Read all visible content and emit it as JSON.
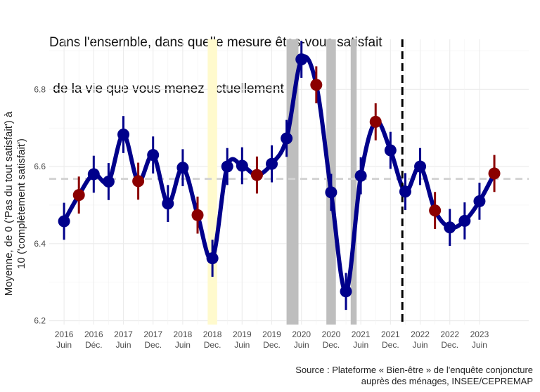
{
  "title_lines": [
    "Dans l'ensemble, dans quelle mesure êtes-vous satisfait",
    " de la vie que vous menez actuellement ?"
  ],
  "ylabel_lines": [
    "Moyenne, de 0 ('Pas du tout satisfait') à",
    "10 ('complètement satisfait')"
  ],
  "source_lines": [
    "Source : Plateforme « Bien-être » de l'enquête conjoncture",
    "auprès des ménages, INSEE/CEPREMAP"
  ],
  "colors": {
    "line": "#00008B",
    "point_main": "#00008B",
    "point_highlight": "#8B0000",
    "reference_line": "#d3d3d3",
    "grey_band": "#bebebe",
    "yellow_band": "#fffacd",
    "vline": "#000000"
  },
  "chart_data": {
    "type": "line",
    "ylim": [
      6.19,
      6.93
    ],
    "yticks": [
      6.2,
      6.4,
      6.6,
      6.8
    ],
    "ytick_labels": [
      "6.2",
      "6.4",
      "6.6",
      "6.8"
    ],
    "xlim": [
      2015.75,
      2023.83
    ],
    "xticks": [
      {
        "x": 2016.0,
        "year": "2016",
        "month": "Juin"
      },
      {
        "x": 2016.5,
        "year": "2016",
        "month": "Déc."
      },
      {
        "x": 2017.0,
        "year": "2017",
        "month": "Juin"
      },
      {
        "x": 2017.5,
        "year": "2017",
        "month": "Dec."
      },
      {
        "x": 2018.0,
        "year": "2018",
        "month": "Juin"
      },
      {
        "x": 2018.5,
        "year": "2018",
        "month": "Dec."
      },
      {
        "x": 2019.0,
        "year": "2019",
        "month": "Juin"
      },
      {
        "x": 2019.5,
        "year": "2019",
        "month": "Dec."
      },
      {
        "x": 2020.0,
        "year": "2020",
        "month": "Juin"
      },
      {
        "x": 2020.5,
        "year": "2020",
        "month": "Dec."
      },
      {
        "x": 2021.0,
        "year": "2021",
        "month": "Juin"
      },
      {
        "x": 2021.5,
        "year": "2021",
        "month": "Dec."
      },
      {
        "x": 2022.0,
        "year": "2022",
        "month": "Juin"
      },
      {
        "x": 2022.5,
        "year": "2022",
        "month": "Dec."
      },
      {
        "x": 2023.0,
        "year": "2023",
        "month": "Juin"
      }
    ],
    "reference_y": 6.568,
    "vline_x": 2021.7,
    "bands": [
      {
        "x0": 2018.42,
        "x1": 2018.58,
        "color": "yellow"
      },
      {
        "x0": 2019.75,
        "x1": 2019.95,
        "color": "grey"
      },
      {
        "x0": 2020.42,
        "x1": 2020.58,
        "color": "grey"
      },
      {
        "x0": 2020.83,
        "x1": 2020.93,
        "color": "grey"
      }
    ],
    "points": [
      {
        "x": 2016.0,
        "y": 6.458,
        "lo": 6.41,
        "hi": 6.506,
        "highlight": false
      },
      {
        "x": 2016.25,
        "y": 6.526,
        "lo": 6.478,
        "hi": 6.574,
        "highlight": true
      },
      {
        "x": 2016.5,
        "y": 6.58,
        "lo": 6.532,
        "hi": 6.628,
        "highlight": false
      },
      {
        "x": 2016.75,
        "y": 6.561,
        "lo": 6.513,
        "hi": 6.609,
        "highlight": false
      },
      {
        "x": 2017.0,
        "y": 6.683,
        "lo": 6.635,
        "hi": 6.731,
        "highlight": false
      },
      {
        "x": 2017.25,
        "y": 6.562,
        "lo": 6.514,
        "hi": 6.61,
        "highlight": true
      },
      {
        "x": 2017.5,
        "y": 6.63,
        "lo": 6.582,
        "hi": 6.678,
        "highlight": false
      },
      {
        "x": 2017.75,
        "y": 6.504,
        "lo": 6.456,
        "hi": 6.552,
        "highlight": false
      },
      {
        "x": 2018.0,
        "y": 6.597,
        "lo": 6.549,
        "hi": 6.645,
        "highlight": false
      },
      {
        "x": 2018.25,
        "y": 6.474,
        "lo": 6.426,
        "hi": 6.522,
        "highlight": true
      },
      {
        "x": 2018.5,
        "y": 6.362,
        "lo": 6.314,
        "hi": 6.41,
        "highlight": false
      },
      {
        "x": 2018.75,
        "y": 6.6,
        "lo": 6.552,
        "hi": 6.648,
        "highlight": false
      },
      {
        "x": 2019.0,
        "y": 6.602,
        "lo": 6.554,
        "hi": 6.65,
        "highlight": false
      },
      {
        "x": 2019.25,
        "y": 6.578,
        "lo": 6.53,
        "hi": 6.626,
        "highlight": true
      },
      {
        "x": 2019.5,
        "y": 6.607,
        "lo": 6.559,
        "hi": 6.655,
        "highlight": false
      },
      {
        "x": 2019.75,
        "y": 6.673,
        "lo": 6.625,
        "hi": 6.721,
        "highlight": false
      },
      {
        "x": 2020.0,
        "y": 6.878,
        "lo": 6.83,
        "hi": 6.926,
        "highlight": false
      },
      {
        "x": 2020.25,
        "y": 6.812,
        "lo": 6.764,
        "hi": 6.86,
        "highlight": true
      },
      {
        "x": 2020.5,
        "y": 6.533,
        "lo": 6.485,
        "hi": 6.581,
        "highlight": false
      },
      {
        "x": 2020.75,
        "y": 6.276,
        "lo": 6.228,
        "hi": 6.324,
        "highlight": false
      },
      {
        "x": 2021.0,
        "y": 6.576,
        "lo": 6.528,
        "hi": 6.624,
        "highlight": false
      },
      {
        "x": 2021.25,
        "y": 6.716,
        "lo": 6.668,
        "hi": 6.764,
        "highlight": true
      },
      {
        "x": 2021.5,
        "y": 6.642,
        "lo": 6.594,
        "hi": 6.69,
        "highlight": false
      },
      {
        "x": 2021.75,
        "y": 6.535,
        "lo": 6.487,
        "hi": 6.583,
        "highlight": false
      },
      {
        "x": 2022.0,
        "y": 6.6,
        "lo": 6.552,
        "hi": 6.648,
        "highlight": false
      },
      {
        "x": 2022.25,
        "y": 6.486,
        "lo": 6.438,
        "hi": 6.534,
        "highlight": true
      },
      {
        "x": 2022.5,
        "y": 6.442,
        "lo": 6.394,
        "hi": 6.49,
        "highlight": false
      },
      {
        "x": 2022.75,
        "y": 6.459,
        "lo": 6.411,
        "hi": 6.507,
        "highlight": false
      },
      {
        "x": 2023.0,
        "y": 6.51,
        "lo": 6.462,
        "hi": 6.558,
        "highlight": false
      },
      {
        "x": 2023.25,
        "y": 6.582,
        "lo": 6.534,
        "hi": 6.63,
        "highlight": true
      }
    ]
  }
}
